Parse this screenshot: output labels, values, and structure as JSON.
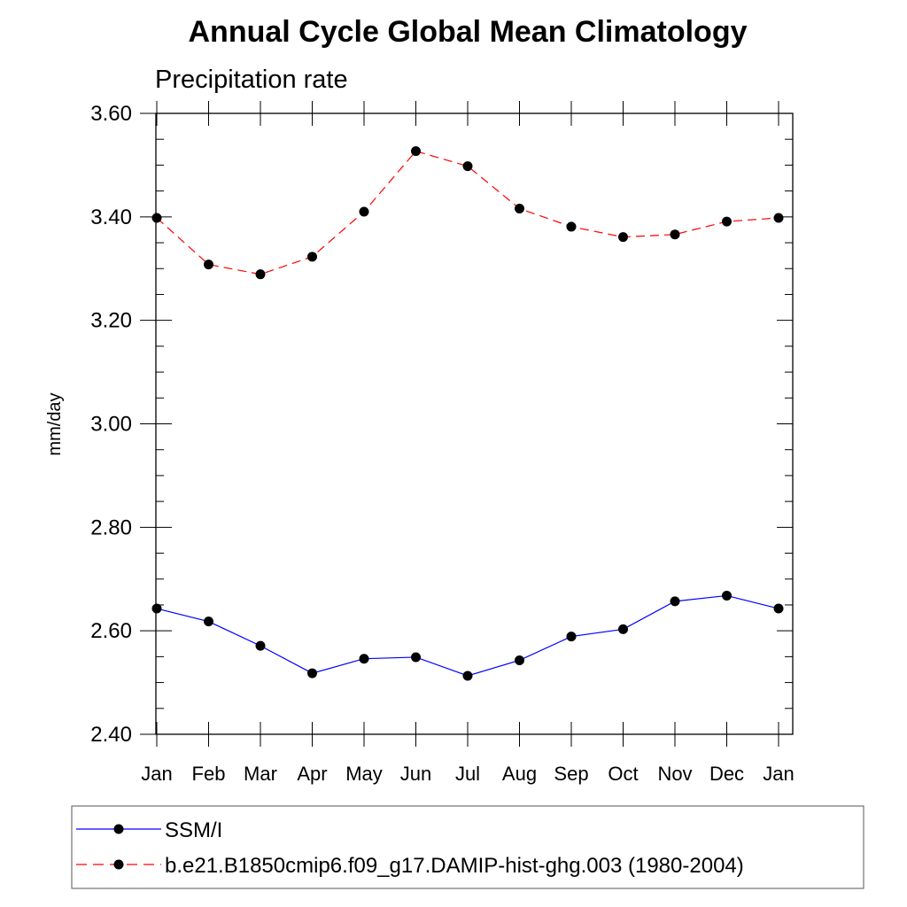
{
  "chart_data": {
    "type": "line",
    "title": "Annual Cycle Global Mean Climatology",
    "subtitle": "Precipitation rate",
    "xlabel": "",
    "ylabel": "mm/day",
    "categories": [
      "Jan",
      "Feb",
      "Mar",
      "Apr",
      "May",
      "Jun",
      "Jul",
      "Aug",
      "Sep",
      "Oct",
      "Nov",
      "Dec",
      "Jan"
    ],
    "ylim": [
      2.4,
      3.6
    ],
    "yticks": [
      "2.40",
      "2.60",
      "2.80",
      "3.00",
      "3.20",
      "3.40",
      "3.60"
    ],
    "grid": false,
    "legend_position": "bottom",
    "series": [
      {
        "name": "SSM/I",
        "color": "#0000ff",
        "line_style": "solid",
        "marker": "filled-circle",
        "values": [
          2.643,
          2.618,
          2.571,
          2.518,
          2.546,
          2.549,
          2.513,
          2.543,
          2.589,
          2.603,
          2.657,
          2.668,
          2.643
        ]
      },
      {
        "name": "b.e21.B1850cmip6.f09_g17.DAMIP-hist-ghg.003 (1980-2004)",
        "color": "#ff0000",
        "line_style": "dashed",
        "marker": "filled-circle",
        "values": [
          3.398,
          3.308,
          3.289,
          3.323,
          3.41,
          3.527,
          3.498,
          3.416,
          3.381,
          3.361,
          3.366,
          3.391,
          3.398
        ]
      }
    ]
  }
}
